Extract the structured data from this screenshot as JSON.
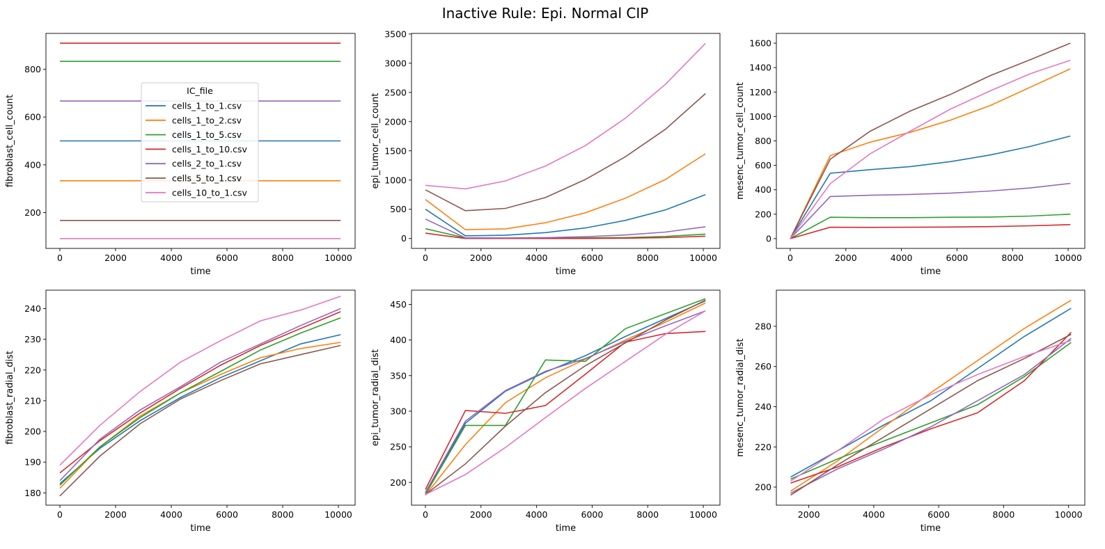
{
  "title": "Inactive Rule: Epi. Normal CIP",
  "colors": [
    "#1f77b4",
    "#ff7f0e",
    "#2ca02c",
    "#d62728",
    "#9467bd",
    "#8c564b",
    "#e377c2"
  ],
  "legend": {
    "title": "IC_file",
    "entries": [
      "cells_1_to_1.csv",
      "cells_1_to_2.csv",
      "cells_1_to_5.csv",
      "cells_1_to_10.csv",
      "cells_2_to_1.csv",
      "cells_5_to_1.csv",
      "cells_10_to_1.csv"
    ]
  },
  "chart_data": [
    {
      "type": "line",
      "xlabel": "time",
      "ylabel": "fibroblast_cell_count",
      "xlim": [
        -500,
        10600
      ],
      "ylim": [
        50,
        950
      ],
      "xticks": [
        0,
        2000,
        4000,
        6000,
        8000,
        10000
      ],
      "yticks": [
        200,
        400,
        600,
        800
      ],
      "x": [
        0,
        10080
      ],
      "series": [
        {
          "name": "cells_1_to_1.csv",
          "values": [
            500,
            500
          ]
        },
        {
          "name": "cells_1_to_2.csv",
          "values": [
            333,
            333
          ]
        },
        {
          "name": "cells_1_to_5.csv",
          "values": [
            833,
            833
          ]
        },
        {
          "name": "cells_1_to_10.csv",
          "values": [
            909,
            909
          ]
        },
        {
          "name": "cells_2_to_1.csv",
          "values": [
            667,
            667
          ]
        },
        {
          "name": "cells_5_to_1.csv",
          "values": [
            167,
            167
          ]
        },
        {
          "name": "cells_10_to_1.csv",
          "values": [
            91,
            91
          ]
        }
      ]
    },
    {
      "type": "line",
      "xlabel": "time",
      "ylabel": "epi_tumor_cell_count",
      "xlim": [
        -500,
        10600
      ],
      "ylim": [
        -170,
        3510
      ],
      "xticks": [
        0,
        2000,
        4000,
        6000,
        8000,
        10000
      ],
      "yticks": [
        0,
        500,
        1000,
        1500,
        2000,
        2500,
        3000,
        3500
      ],
      "x": [
        0,
        1440,
        2880,
        4320,
        5760,
        7200,
        8640,
        10080
      ],
      "series": [
        {
          "name": "cells_1_to_1.csv",
          "values": [
            500,
            45,
            55,
            100,
            180,
            310,
            490,
            750
          ]
        },
        {
          "name": "cells_1_to_2.csv",
          "values": [
            667,
            150,
            165,
            270,
            440,
            690,
            1010,
            1450
          ]
        },
        {
          "name": "cells_1_to_5.csv",
          "values": [
            167,
            10,
            5,
            8,
            10,
            15,
            35,
            75
          ]
        },
        {
          "name": "cells_1_to_10.csv",
          "values": [
            91,
            0,
            0,
            0,
            0,
            5,
            15,
            40
          ]
        },
        {
          "name": "cells_2_to_1.csv",
          "values": [
            333,
            10,
            10,
            15,
            30,
            60,
            110,
            200
          ]
        },
        {
          "name": "cells_5_to_1.csv",
          "values": [
            833,
            475,
            515,
            700,
            1010,
            1400,
            1870,
            2480
          ]
        },
        {
          "name": "cells_10_to_1.csv",
          "values": [
            909,
            850,
            985,
            1240,
            1590,
            2060,
            2640,
            3340
          ]
        }
      ]
    },
    {
      "type": "line",
      "xlabel": "time",
      "ylabel": "mesenc_tumor_cell_count",
      "xlim": [
        -500,
        10600
      ],
      "ylim": [
        -80,
        1680
      ],
      "xticks": [
        0,
        2000,
        4000,
        6000,
        8000,
        10000
      ],
      "yticks": [
        0,
        200,
        400,
        600,
        800,
        1000,
        1200,
        1400,
        1600
      ],
      "x": [
        0,
        1440,
        2880,
        4320,
        5760,
        7200,
        8640,
        10080
      ],
      "series": [
        {
          "name": "cells_1_to_1.csv",
          "values": [
            0,
            535,
            565,
            590,
            630,
            685,
            755,
            840
          ]
        },
        {
          "name": "cells_1_to_2.csv",
          "values": [
            0,
            680,
            790,
            870,
            970,
            1090,
            1240,
            1390
          ]
        },
        {
          "name": "cells_1_to_5.csv",
          "values": [
            0,
            175,
            172,
            172,
            175,
            177,
            185,
            200
          ]
        },
        {
          "name": "cells_1_to_10.csv",
          "values": [
            0,
            93,
            92,
            93,
            95,
            98,
            105,
            115
          ]
        },
        {
          "name": "cells_2_to_1.csv",
          "values": [
            0,
            345,
            355,
            362,
            372,
            390,
            415,
            452
          ]
        },
        {
          "name": "cells_5_to_1.csv",
          "values": [
            0,
            650,
            880,
            1045,
            1180,
            1335,
            1465,
            1600
          ]
        },
        {
          "name": "cells_10_to_1.csv",
          "values": [
            0,
            450,
            695,
            880,
            1060,
            1210,
            1350,
            1460
          ]
        }
      ]
    },
    {
      "type": "line",
      "xlabel": "time",
      "ylabel": "fibroblast_radial_dist",
      "xlim": [
        -500,
        10600
      ],
      "ylim": [
        176,
        246
      ],
      "xticks": [
        0,
        2000,
        4000,
        6000,
        8000,
        10000
      ],
      "yticks": [
        180,
        190,
        200,
        210,
        220,
        230,
        240
      ],
      "x": [
        0,
        1440,
        2880,
        4320,
        5760,
        7200,
        8640,
        10080
      ],
      "series": [
        {
          "name": "cells_1_to_1.csv",
          "values": [
            183,
            194.5,
            203.5,
            211,
            217.5,
            223,
            228.5,
            231.5
          ]
        },
        {
          "name": "cells_1_to_2.csv",
          "values": [
            181.5,
            195,
            205,
            212.5,
            218.5,
            224,
            227,
            229
          ]
        },
        {
          "name": "cells_1_to_5.csv",
          "values": [
            182.5,
            195,
            204.5,
            212.5,
            219.5,
            226.5,
            232,
            237
          ]
        },
        {
          "name": "cells_1_to_10.csv",
          "values": [
            186.5,
            197,
            206,
            214,
            221.5,
            228,
            233.5,
            239
          ]
        },
        {
          "name": "cells_2_to_1.csv",
          "values": [
            184,
            197.5,
            207,
            214.5,
            222.5,
            228.5,
            234.5,
            240
          ]
        },
        {
          "name": "cells_5_to_1.csv",
          "values": [
            179,
            192,
            202.5,
            210.5,
            216.5,
            222,
            225,
            228
          ]
        },
        {
          "name": "cells_10_to_1.csv",
          "values": [
            189,
            202,
            213,
            222.5,
            229.5,
            236,
            239.5,
            244
          ]
        }
      ]
    },
    {
      "type": "line",
      "xlabel": "time",
      "ylabel": "epi_tumor_radial_dist",
      "xlim": [
        -500,
        10600
      ],
      "ylim": [
        168,
        470
      ],
      "xticks": [
        0,
        2000,
        4000,
        6000,
        8000,
        10000
      ],
      "yticks": [
        200,
        250,
        300,
        350,
        400,
        450
      ],
      "x": [
        0,
        1440,
        2880,
        4320,
        5760,
        7200,
        8640,
        10080
      ],
      "series": [
        {
          "name": "cells_1_to_1.csv",
          "values": [
            185,
            283,
            328,
            355,
            378,
            405,
            430,
            455
          ]
        },
        {
          "name": "cells_1_to_2.csv",
          "values": [
            182,
            253,
            312,
            347,
            373,
            400,
            425,
            452
          ]
        },
        {
          "name": "cells_1_to_5.csv",
          "values": [
            183,
            280,
            280,
            372,
            370,
            416,
            437,
            458
          ]
        },
        {
          "name": "cells_1_to_10.csv",
          "values": [
            190,
            301,
            297,
            308,
            352,
            397,
            409,
            412
          ]
        },
        {
          "name": "cells_2_to_1.csv",
          "values": [
            186,
            286,
            329,
            356,
            374,
            398,
            420,
            441
          ]
        },
        {
          "name": "cells_5_to_1.csv",
          "values": [
            183,
            226,
            279,
            326,
            364,
            396,
            428,
            456
          ]
        },
        {
          "name": "cells_10_to_1.csv",
          "values": [
            183,
            211,
            249,
            291,
            332,
            370,
            408,
            441
          ]
        }
      ]
    },
    {
      "type": "line",
      "xlabel": "time",
      "ylabel": "mesenc_tumor_radial_dist",
      "xlim": [
        1000,
        10500
      ],
      "ylim": [
        191,
        298
      ],
      "xticks": [
        2000,
        4000,
        6000,
        8000,
        10000
      ],
      "yticks": [
        200,
        220,
        240,
        260,
        280
      ],
      "x": [
        1440,
        2880,
        4320,
        5760,
        7200,
        8640,
        10080
      ],
      "series": [
        {
          "name": "cells_1_to_1.csv",
          "values": [
            205,
            218,
            231,
            243,
            259,
            275,
            289
          ]
        },
        {
          "name": "cells_1_to_2.csv",
          "values": [
            198,
            213,
            230,
            247,
            263,
            279,
            293
          ]
        },
        {
          "name": "cells_1_to_5.csv",
          "values": [
            204,
            214,
            223,
            232,
            241,
            255,
            272
          ]
        },
        {
          "name": "cells_1_to_10.csv",
          "values": [
            202,
            210,
            220,
            229,
            237,
            253,
            277
          ]
        },
        {
          "name": "cells_2_to_1.csv",
          "values": [
            197,
            209,
            219,
            230,
            243,
            256,
            274
          ]
        },
        {
          "name": "cells_5_to_1.csv",
          "values": [
            196,
            211,
            225,
            239,
            253,
            264,
            276
          ]
        },
        {
          "name": "cells_10_to_1.csv",
          "values": [
            203,
            218,
            234,
            246,
            256,
            265,
            273
          ]
        }
      ]
    }
  ]
}
